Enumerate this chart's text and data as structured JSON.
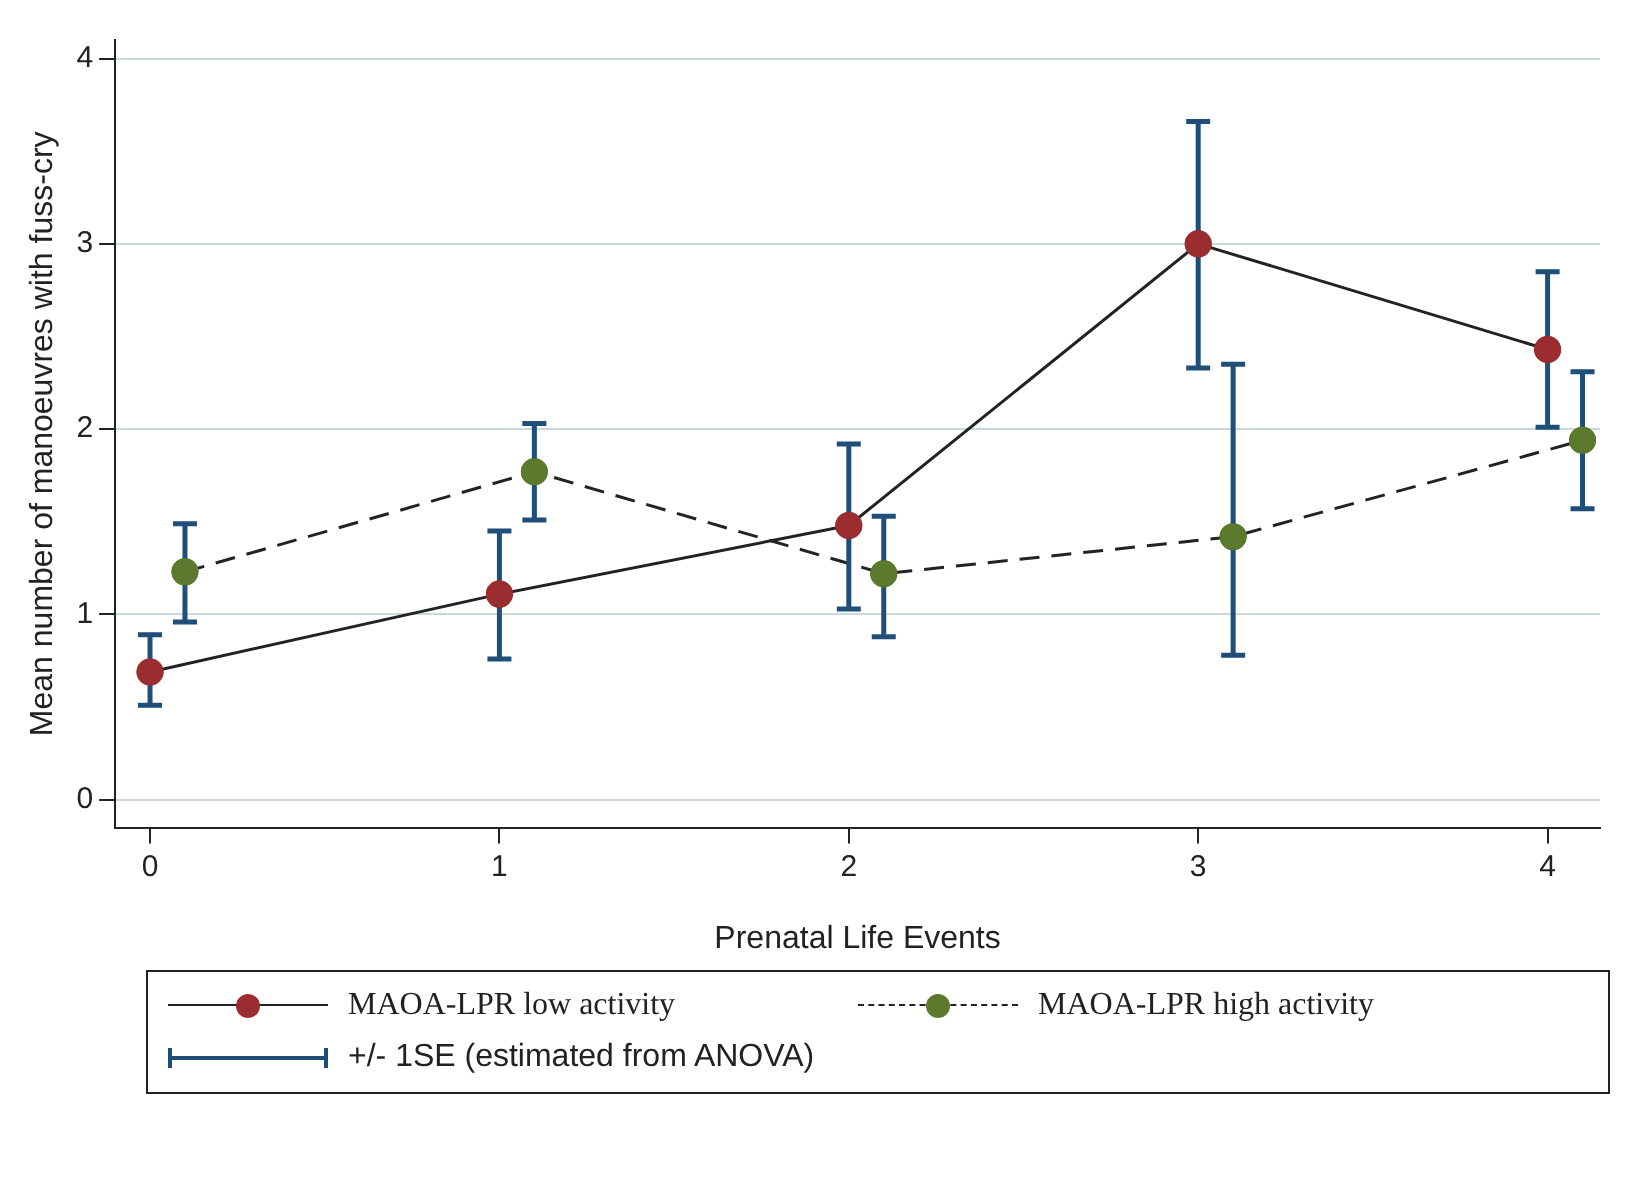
{
  "chart_data": {
    "type": "line",
    "xlabel": "Prenatal Life Events",
    "ylabel": "Mean number of manoeuvres with fuss-cry",
    "xlim": [
      -0.1,
      4.15
    ],
    "xticks": [
      0,
      1,
      2,
      3,
      4
    ],
    "ylim": [
      -0.15,
      4.1
    ],
    "yticks": [
      0,
      1,
      2,
      3,
      4
    ],
    "grid": "y",
    "legend": "bottom",
    "marker": "circle",
    "series": [
      {
        "name": "MAOA-LPR low activity",
        "color": "#9b2d30",
        "line_style": "solid",
        "x": [
          0,
          1,
          2,
          3,
          4
        ],
        "values": [
          0.69,
          1.11,
          1.48,
          3.0,
          2.43
        ],
        "errors": [
          [
            0.51,
            0.89
          ],
          [
            0.76,
            1.45
          ],
          [
            1.03,
            1.92
          ],
          [
            2.33,
            3.66
          ],
          [
            2.01,
            2.85
          ]
        ]
      },
      {
        "name": "MAOA-LPR high activity",
        "color": "#5b7a2e",
        "line_style": "dashed",
        "x": [
          0.1,
          1.1,
          2.1,
          3.1,
          4.1
        ],
        "values": [
          1.23,
          1.77,
          1.22,
          1.42,
          1.94
        ],
        "errors": [
          [
            0.96,
            1.49
          ],
          [
            1.51,
            2.03
          ],
          [
            0.88,
            1.53
          ],
          [
            0.78,
            2.35
          ],
          [
            1.57,
            2.31
          ]
        ]
      }
    ],
    "annotations": [
      "+/- 1SE (estimated from ANOVA)"
    ]
  }
}
